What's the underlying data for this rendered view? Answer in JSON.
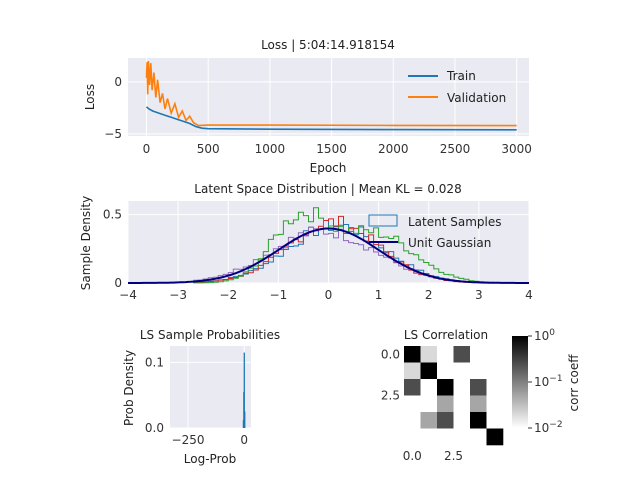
{
  "chart_data": [
    {
      "id": "loss",
      "type": "line",
      "title": "Loss | 5:04:14.918154",
      "xlabel": "Epoch",
      "ylabel": "Loss",
      "xlim": [
        -150,
        3100
      ],
      "ylim": [
        -5.2,
        2.3
      ],
      "xticks": [
        0,
        500,
        1000,
        1500,
        2000,
        2500,
        3000
      ],
      "yticks": [
        -5,
        0
      ],
      "grid": true,
      "legend_position": "top-right",
      "series": [
        {
          "name": "Train",
          "color": "#1f77b4",
          "points": [
            [
              0,
              -2.4
            ],
            [
              20,
              -2.6
            ],
            [
              50,
              -2.8
            ],
            [
              100,
              -3.0
            ],
            [
              150,
              -3.2
            ],
            [
              200,
              -3.4
            ],
            [
              250,
              -3.6
            ],
            [
              300,
              -3.8
            ],
            [
              350,
              -4.0
            ],
            [
              400,
              -4.3
            ],
            [
              450,
              -4.45
            ],
            [
              500,
              -4.5
            ],
            [
              1000,
              -4.55
            ],
            [
              2000,
              -4.58
            ],
            [
              3000,
              -4.6
            ]
          ]
        },
        {
          "name": "Validation",
          "color": "#ff7f0e",
          "points": [
            [
              0,
              0.4
            ],
            [
              5,
              1.9
            ],
            [
              10,
              -1.2
            ],
            [
              15,
              2.0
            ],
            [
              25,
              -0.3
            ],
            [
              35,
              1.8
            ],
            [
              45,
              -0.8
            ],
            [
              60,
              0.9
            ],
            [
              75,
              -1.5
            ],
            [
              90,
              0.2
            ],
            [
              110,
              -2.0
            ],
            [
              130,
              -1.1
            ],
            [
              150,
              -2.6
            ],
            [
              170,
              -1.6
            ],
            [
              200,
              -3.0
            ],
            [
              230,
              -2.1
            ],
            [
              260,
              -3.4
            ],
            [
              290,
              -2.8
            ],
            [
              320,
              -3.7
            ],
            [
              350,
              -3.3
            ],
            [
              380,
              -3.9
            ],
            [
              420,
              -4.2
            ],
            [
              500,
              -4.15
            ],
            [
              1000,
              -4.15
            ],
            [
              2000,
              -4.18
            ],
            [
              3000,
              -4.2
            ]
          ]
        }
      ]
    },
    {
      "id": "latent",
      "type": "line",
      "title": "Latent Space Distribution | Mean KL = 0.028",
      "xlabel": "",
      "ylabel": "Sample Density",
      "xlim": [
        -4,
        4
      ],
      "ylim": [
        0,
        0.6
      ],
      "xticks": [
        -4,
        -3,
        -2,
        -1,
        0,
        1,
        2,
        3,
        4
      ],
      "yticks": [
        0.0,
        0.5
      ],
      "ytick_labels": [
        "0",
        "0.5"
      ],
      "grid": true,
      "legend_position": "top-right",
      "series": [
        {
          "name": "Latent Samples",
          "style": "step-histogram",
          "color": "#1f77b4",
          "mean": 0.15,
          "sd": 0.95
        },
        {
          "color": "#d62728",
          "style": "step-histogram",
          "mean": 0.1,
          "sd": 0.9
        },
        {
          "color": "#9467bd",
          "style": "step-histogram",
          "mean": -0.1,
          "sd": 1.05
        },
        {
          "color": "#2ca02c",
          "style": "step-histogram",
          "bimodal": [
            [
              -0.6,
              0.55,
              0.55
            ],
            [
              0.9,
              0.8,
              0.45
            ]
          ]
        },
        {
          "name": "Unit Gaussian",
          "style": "line",
          "color": "#000080",
          "mean": 0.0,
          "sd": 1.0
        }
      ]
    },
    {
      "id": "probs",
      "type": "bar",
      "title": "LS Sample Probabilities",
      "xlabel": "Log-Prob",
      "ylabel": "Prob Density",
      "xlim": [
        -330,
        30
      ],
      "ylim": [
        0,
        0.125
      ],
      "xticks": [
        -250,
        0
      ],
      "yticks": [
        0.0,
        0.1
      ],
      "ytick_labels": [
        "0.0",
        "0.1"
      ],
      "grid": true,
      "bars": [
        {
          "x": -4,
          "value": 0.012
        },
        {
          "x": -2,
          "value": 0.055
        },
        {
          "x": 0,
          "value": 0.115
        },
        {
          "x": 2,
          "value": 0.025
        }
      ]
    },
    {
      "id": "corr",
      "type": "heatmap",
      "title": "LS Correlation",
      "colorbar_label": "corr coeff",
      "colorbar_ticks": [
        "10^0",
        "10^-1",
        "10^-2"
      ],
      "xtick_labels": [
        "0.0",
        "2.5"
      ],
      "ytick_labels": [
        "0.0",
        "2.5"
      ],
      "matrix": [
        [
          1.0,
          0.02,
          0.01,
          0.25,
          0.01,
          0.01
        ],
        [
          0.02,
          1.0,
          0.01,
          0.01,
          0.01,
          0.01
        ],
        [
          0.25,
          0.01,
          1.0,
          0.01,
          0.25,
          0.01
        ],
        [
          0.01,
          0.01,
          0.05,
          0.01,
          0.05,
          0.01
        ],
        [
          0.01,
          0.05,
          0.25,
          0.01,
          1.0,
          0.01
        ],
        [
          0.01,
          0.01,
          0.01,
          0.01,
          0.01,
          1.0
        ]
      ]
    }
  ]
}
